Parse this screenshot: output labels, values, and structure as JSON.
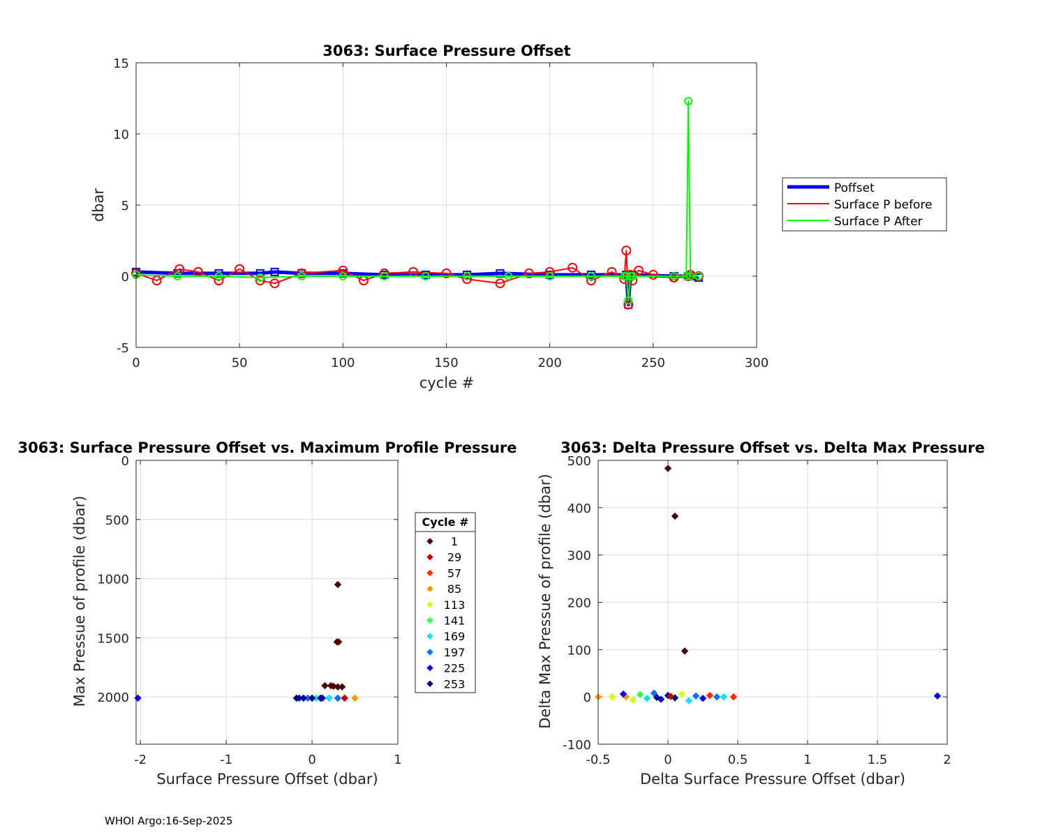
{
  "footer": "WHOI Argo:16-Sep-2025",
  "colors": {
    "poffset": "#0000ff",
    "before": "#ff0000",
    "after": "#00ff00",
    "cycle_cmap": [
      "#4d0000",
      "#c00000",
      "#ff2a00",
      "#ff9900",
      "#d4ff00",
      "#33ff4d",
      "#00e6ff",
      "#0073ff",
      "#0000ff",
      "#000080"
    ]
  },
  "chart_data": [
    {
      "type": "line",
      "title": "3063: Surface Pressure Offset",
      "xlabel": "cycle #",
      "ylabel": "dbar",
      "xlim": [
        0,
        300
      ],
      "ylim": [
        -5,
        15
      ],
      "xticks": [
        0,
        50,
        100,
        150,
        200,
        250,
        300
      ],
      "yticks": [
        -5,
        0,
        5,
        10,
        15
      ],
      "grid": true,
      "legend_position": "right-outside",
      "series": [
        {
          "name": "Poffset",
          "style": "thick blue line with square markers",
          "x": [
            0,
            20,
            40,
            60,
            67,
            80,
            100,
            120,
            140,
            160,
            176,
            200,
            220,
            237,
            238,
            239,
            240,
            260,
            267,
            268,
            272
          ],
          "y": [
            0.3,
            0.2,
            0.2,
            0.2,
            0.3,
            0.2,
            0.2,
            0.1,
            0.1,
            0.1,
            0.2,
            0.1,
            0.1,
            0.1,
            -2.0,
            0.1,
            0.1,
            0.0,
            0.0,
            0.0,
            -0.1
          ]
        },
        {
          "name": "Surface P before",
          "style": "red line with circle markers",
          "x": [
            0,
            10,
            21,
            30,
            40,
            50,
            60,
            67,
            80,
            100,
            110,
            120,
            134,
            150,
            160,
            176,
            190,
            200,
            211,
            220,
            230,
            236,
            237,
            238,
            239,
            240,
            243,
            250,
            260,
            267,
            268,
            272
          ],
          "y": [
            0.2,
            -0.3,
            0.5,
            0.3,
            -0.3,
            0.5,
            -0.3,
            -0.5,
            0.2,
            0.4,
            -0.3,
            0.2,
            0.3,
            0.2,
            -0.2,
            -0.5,
            0.2,
            0.3,
            0.6,
            -0.3,
            0.3,
            -0.2,
            1.8,
            -2.0,
            0.1,
            -0.3,
            0.4,
            0.1,
            -0.1,
            0.0,
            0.1,
            0.0
          ]
        },
        {
          "name": "Surface P After",
          "style": "green line with circle markers",
          "x": [
            0,
            20,
            40,
            60,
            80,
            100,
            120,
            140,
            160,
            180,
            200,
            220,
            236,
            237,
            238,
            239,
            240,
            260,
            266,
            267,
            268,
            272
          ],
          "y": [
            0.1,
            0.0,
            0.0,
            -0.1,
            0.0,
            0.0,
            0.0,
            0.0,
            0.0,
            0.0,
            0.0,
            0.0,
            0.0,
            0.0,
            -1.7,
            0.0,
            0.0,
            0.0,
            0.0,
            12.3,
            0.0,
            0.0
          ]
        }
      ]
    },
    {
      "type": "scatter",
      "title": "3063: Surface Pressure Offset vs. Maximum Profile Pressure",
      "xlabel": "Surface Pressure Offset (dbar)",
      "ylabel": "Max Pressue of profile (dbar)",
      "xlim": [
        -2.05,
        1
      ],
      "ylim": [
        0,
        2400
      ],
      "y_reversed": true,
      "xticks": [
        -2,
        -1,
        0,
        1
      ],
      "yticks": [
        0,
        500,
        1000,
        1500,
        2000
      ],
      "grid": true,
      "legend_title": "Cycle #",
      "legend_entries": [
        "1",
        "29",
        "57",
        "85",
        "113",
        "141",
        "169",
        "197",
        "225",
        "253"
      ],
      "legend_position": "right-outside",
      "points": [
        {
          "x": 0.3,
          "y": 1050,
          "c": 0
        },
        {
          "x": 0.29,
          "y": 1535,
          "c": 0
        },
        {
          "x": 0.31,
          "y": 1535,
          "c": 0
        },
        {
          "x": 0.15,
          "y": 1905,
          "c": 0
        },
        {
          "x": 0.22,
          "y": 1905,
          "c": 0
        },
        {
          "x": 0.25,
          "y": 1910,
          "c": 0
        },
        {
          "x": 0.3,
          "y": 1915,
          "c": 0
        },
        {
          "x": 0.35,
          "y": 1915,
          "c": 0
        },
        {
          "x": 0.2,
          "y": 2010,
          "c": 1
        },
        {
          "x": 0.38,
          "y": 2010,
          "c": 1
        },
        {
          "x": 0.3,
          "y": 2010,
          "c": 2
        },
        {
          "x": 0.5,
          "y": 2010,
          "c": 3
        },
        {
          "x": 0.1,
          "y": 2010,
          "c": 4
        },
        {
          "x": 0.0,
          "y": 2010,
          "c": 5
        },
        {
          "x": 0.2,
          "y": 2010,
          "c": 6
        },
        {
          "x": 0.05,
          "y": 2010,
          "c": 6
        },
        {
          "x": 0.3,
          "y": 2010,
          "c": 7
        },
        {
          "x": -0.05,
          "y": 2010,
          "c": 7
        },
        {
          "x": -2.03,
          "y": 2010,
          "c": 8
        },
        {
          "x": -0.15,
          "y": 2010,
          "c": 8
        },
        {
          "x": 0.12,
          "y": 2010,
          "c": 8
        },
        {
          "x": -0.18,
          "y": 2010,
          "c": 9
        },
        {
          "x": -0.1,
          "y": 2010,
          "c": 9
        },
        {
          "x": 0.0,
          "y": 2010,
          "c": 9
        },
        {
          "x": 0.1,
          "y": 2010,
          "c": 9
        }
      ]
    },
    {
      "type": "scatter",
      "title": "3063: Delta Pressure Offset vs. Delta Max Pressure",
      "xlabel": "Delta Surface Pressure Offset (dbar)",
      "ylabel": "Delta Max Pressue of profile (dbar)",
      "xlim": [
        -0.5,
        2
      ],
      "ylim": [
        -100,
        500
      ],
      "xticks": [
        -0.5,
        0,
        0.5,
        1,
        1.5,
        2
      ],
      "yticks": [
        -100,
        0,
        100,
        200,
        300,
        400,
        500
      ],
      "grid": true,
      "points": [
        {
          "x": 0.0,
          "y": 483,
          "c": 0
        },
        {
          "x": 0.05,
          "y": 382,
          "c": 0
        },
        {
          "x": 0.12,
          "y": 97,
          "c": 0
        },
        {
          "x": -0.5,
          "y": 0,
          "c": 3
        },
        {
          "x": -0.4,
          "y": 0,
          "c": 4
        },
        {
          "x": -0.3,
          "y": 0,
          "c": 3
        },
        {
          "x": -0.25,
          "y": -6,
          "c": 4
        },
        {
          "x": -0.2,
          "y": 5,
          "c": 5
        },
        {
          "x": -0.15,
          "y": -3,
          "c": 6
        },
        {
          "x": -0.1,
          "y": 8,
          "c": 7
        },
        {
          "x": -0.05,
          "y": -5,
          "c": 8
        },
        {
          "x": 0.0,
          "y": 3,
          "c": 9
        },
        {
          "x": 0.05,
          "y": -2,
          "c": 9
        },
        {
          "x": 0.1,
          "y": 6,
          "c": 4
        },
        {
          "x": 0.15,
          "y": -8,
          "c": 6
        },
        {
          "x": 0.2,
          "y": 2,
          "c": 7
        },
        {
          "x": 0.25,
          "y": -3,
          "c": 8
        },
        {
          "x": 0.3,
          "y": 3,
          "c": 2
        },
        {
          "x": 0.35,
          "y": 0,
          "c": 7
        },
        {
          "x": 0.4,
          "y": 0,
          "c": 6
        },
        {
          "x": 0.47,
          "y": 0,
          "c": 2
        },
        {
          "x": -0.32,
          "y": 6,
          "c": 8
        },
        {
          "x": -0.08,
          "y": -1,
          "c": 9
        },
        {
          "x": 0.02,
          "y": 1,
          "c": 1
        },
        {
          "x": 1.93,
          "y": 2,
          "c": 8
        }
      ]
    }
  ]
}
